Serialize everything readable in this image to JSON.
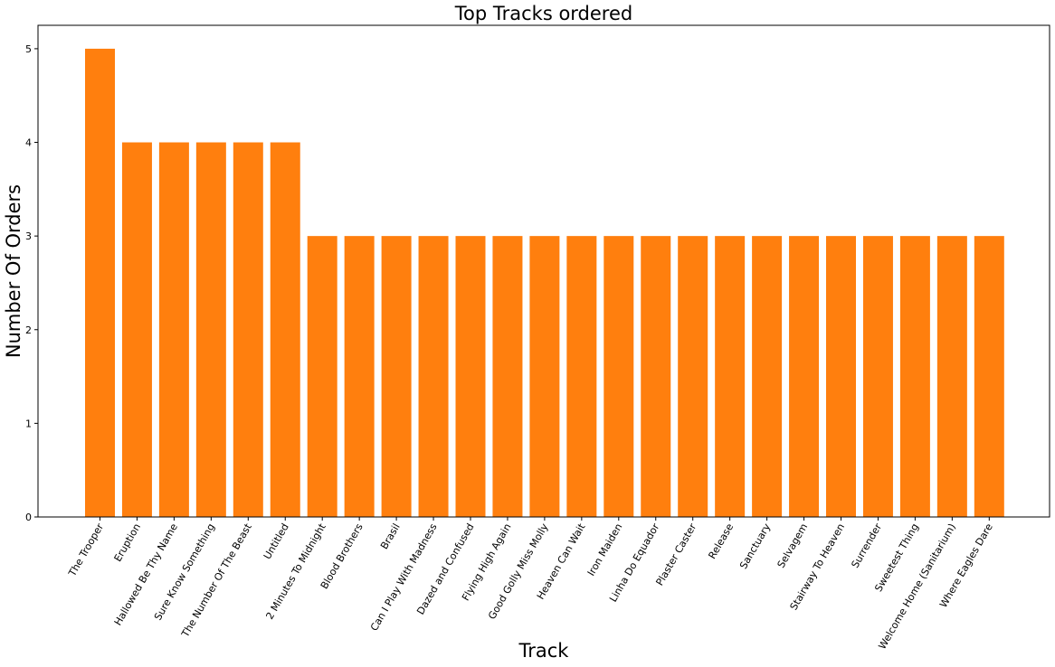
{
  "chart_data": {
    "type": "bar",
    "title": "Top Tracks ordered",
    "xlabel": "Track",
    "ylabel": "Number Of Orders",
    "ylim": [
      0,
      5.25
    ],
    "yticks": [
      0,
      1,
      2,
      3,
      4,
      5
    ],
    "grid": false,
    "bar_color": "#ff7f0e",
    "categories": [
      "The Trooper",
      "Eruption",
      "Hallowed Be Thy Name",
      "Sure Know Something",
      "The Number Of The Beast",
      "Untitled",
      "2 Minutes To Midnight",
      "Blood Brothers",
      "Brasil",
      "Can I Play With Madness",
      "Dazed and Confused",
      "Flying High Again",
      "Good Golly Miss Molly",
      "Heaven Can Wait",
      "Iron Maiden",
      "Linha Do Equador",
      "Plaster Caster",
      "Release",
      "Sanctuary",
      "Selvagem",
      "Stairway To Heaven",
      "Surrender",
      "Sweetest Thing",
      "Welcome Home (Sanitarium)",
      "Where Eagles Dare"
    ],
    "values": [
      5,
      4,
      4,
      4,
      4,
      4,
      3,
      3,
      3,
      3,
      3,
      3,
      3,
      3,
      3,
      3,
      3,
      3,
      3,
      3,
      3,
      3,
      3,
      3,
      3
    ]
  }
}
